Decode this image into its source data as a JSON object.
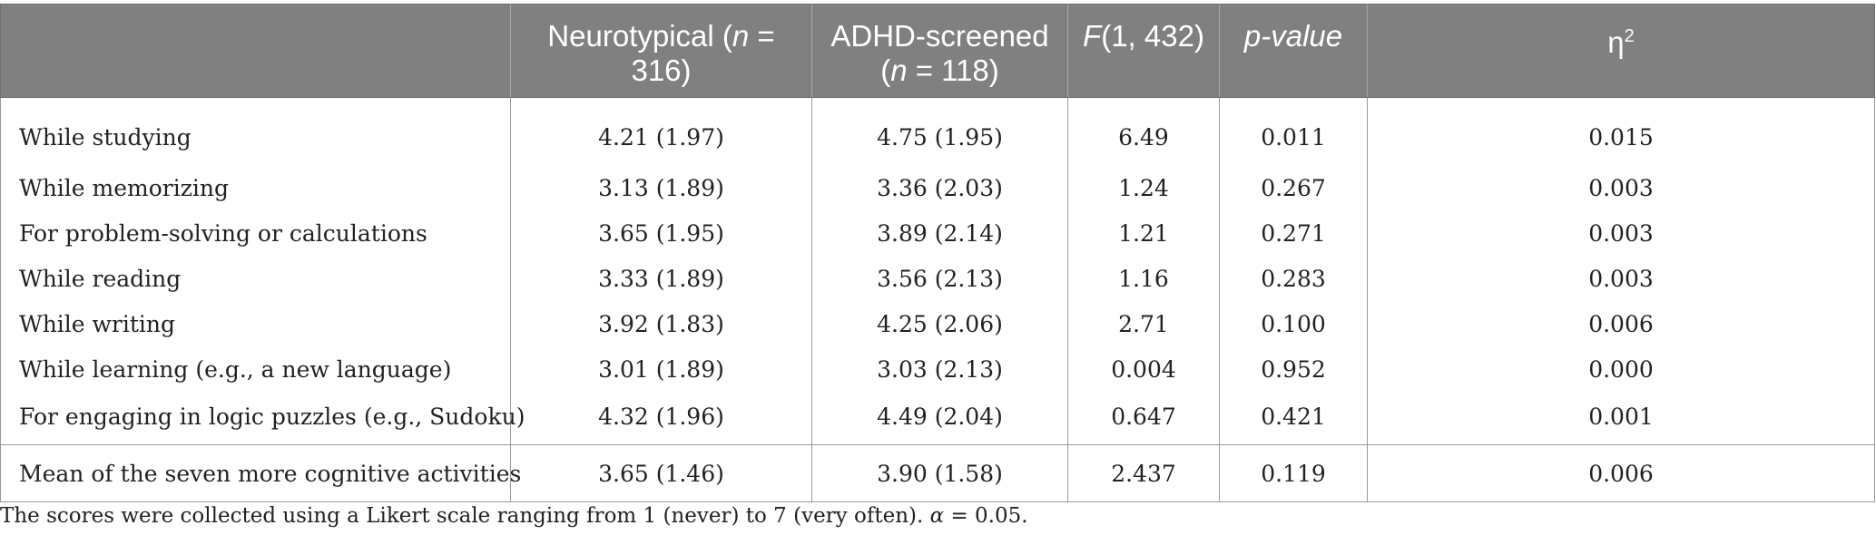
{
  "header": {
    "col1": "",
    "col2_prefix": "Neurotypical (",
    "col2_n": "n",
    "col2_suffix": " = 316)",
    "col3_line1": "ADHD-screened",
    "col3_prefix": "(",
    "col3_n": "n",
    "col3_suffix": " = 118)",
    "col4_f": "F",
    "col4_suffix": "(1, 432)",
    "col5": "p-value",
    "col6_eta": "η",
    "col6_sup": "2"
  },
  "rows": [
    {
      "label": "While studying",
      "neurotypical": "4.21 (1.97)",
      "adhd": "4.75 (1.95)",
      "f": "6.49",
      "p": "0.011",
      "eta2": "0.015"
    },
    {
      "label": "While memorizing",
      "neurotypical": "3.13 (1.89)",
      "adhd": "3.36 (2.03)",
      "f": "1.24",
      "p": "0.267",
      "eta2": "0.003"
    },
    {
      "label": "For problem-solving or calculations",
      "neurotypical": "3.65 (1.95)",
      "adhd": "3.89 (2.14)",
      "f": "1.21",
      "p": "0.271",
      "eta2": "0.003"
    },
    {
      "label": "While reading",
      "neurotypical": "3.33 (1.89)",
      "adhd": "3.56 (2.13)",
      "f": "1.16",
      "p": "0.283",
      "eta2": "0.003"
    },
    {
      "label": "While writing",
      "neurotypical": "3.92 (1.83)",
      "adhd": "4.25 (2.06)",
      "f": "2.71",
      "p": "0.100",
      "eta2": "0.006"
    },
    {
      "label": "While learning (e.g., a new language)",
      "neurotypical": "3.01 (1.89)",
      "adhd": "3.03 (2.13)",
      "f": "0.004",
      "p": "0.952",
      "eta2": "0.000"
    },
    {
      "label": "For engaging in logic puzzles (e.g., Sudoku)",
      "neurotypical": "4.32 (1.96)",
      "adhd": "4.49 (2.04)",
      "f": "0.647",
      "p": "0.421",
      "eta2": "0.001"
    }
  ],
  "mean_row": {
    "label": "Mean of the seven more cognitive activities",
    "neurotypical": "3.65 (1.46)",
    "adhd": "3.90 (1.58)",
    "f": "2.437",
    "p": "0.119",
    "eta2": "0.006"
  },
  "footnote": {
    "text": "The scores were collected using a Likert scale ranging from 1 (never) to 7 (very often). ",
    "alpha": "α",
    "alpha_value": " = 0.05."
  }
}
